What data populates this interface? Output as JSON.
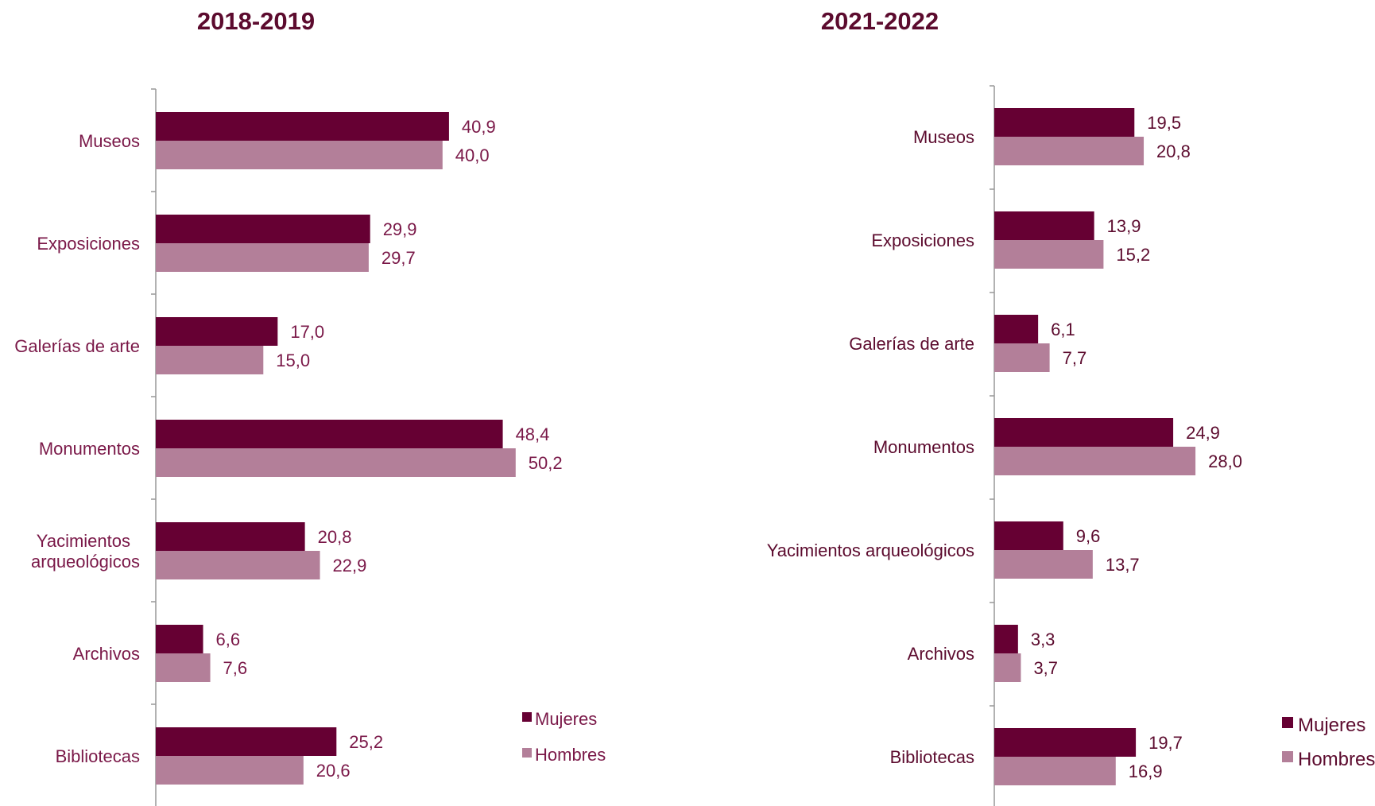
{
  "chart_data": [
    {
      "type": "bar",
      "orientation": "horizontal",
      "title": "2018-2019",
      "categories": [
        "Museos",
        "Exposiciones",
        "Galerías de arte",
        "Monumentos",
        "Yacimientos arqueológicos",
        "Archivos",
        "Bibliotecas"
      ],
      "category_lines": [
        [
          "Museos"
        ],
        [
          "Exposiciones"
        ],
        [
          "Galerías de arte"
        ],
        [
          "Monumentos"
        ],
        [
          "Yacimientos",
          "arqueológicos"
        ],
        [
          "Archivos"
        ],
        [
          "Bibliotecas"
        ]
      ],
      "series": [
        {
          "name": "Mujeres",
          "values": [
            40.9,
            29.9,
            17.0,
            48.4,
            20.8,
            6.6,
            25.2
          ],
          "labels": [
            "40,9",
            "29,9",
            "17,0",
            "48,4",
            "20,8",
            "6,6",
            "25,2"
          ]
        },
        {
          "name": "Hombres",
          "values": [
            40.0,
            29.7,
            15.0,
            50.2,
            22.9,
            7.6,
            20.6
          ],
          "labels": [
            "40,0",
            "29,7",
            "15,0",
            "50,2",
            "22,9",
            "7,6",
            "20,6"
          ]
        }
      ],
      "xlim": [
        0,
        60
      ],
      "grid": false,
      "legend_position": "bottom-right"
    },
    {
      "type": "bar",
      "orientation": "horizontal",
      "title": "2021-2022",
      "categories": [
        "Museos",
        "Exposiciones",
        "Galerías de arte",
        "Monumentos",
        "Yacimientos arqueológicos",
        "Archivos",
        "Bibliotecas"
      ],
      "category_lines": [
        [
          "Museos"
        ],
        [
          "Exposiciones"
        ],
        [
          "Galerías de arte"
        ],
        [
          "Monumentos"
        ],
        [
          "Yacimientos arqueológicos"
        ],
        [
          "Archivos"
        ],
        [
          "Bibliotecas"
        ]
      ],
      "series": [
        {
          "name": "Mujeres",
          "values": [
            19.5,
            13.9,
            6.1,
            24.9,
            9.6,
            3.3,
            19.7
          ],
          "labels": [
            "19,5",
            "13,9",
            "6,1",
            "24,9",
            "9,6",
            "3,3",
            "19,7"
          ]
        },
        {
          "name": "Hombres",
          "values": [
            20.8,
            15.2,
            7.7,
            28.0,
            13.7,
            3.7,
            16.9
          ],
          "labels": [
            "20,8",
            "15,2",
            "7,7",
            "28,0",
            "13,7",
            "3,7",
            "16,9"
          ]
        }
      ],
      "xlim": [
        0,
        30
      ],
      "grid": false,
      "legend_position": "bottom-right"
    }
  ],
  "colors": {
    "mujeres": "#660033",
    "hombres": "#b37f99",
    "title": "#5c0b2e",
    "label_left": "#7a1848",
    "label_right": "#5c0b2e",
    "axis": "#999999"
  }
}
